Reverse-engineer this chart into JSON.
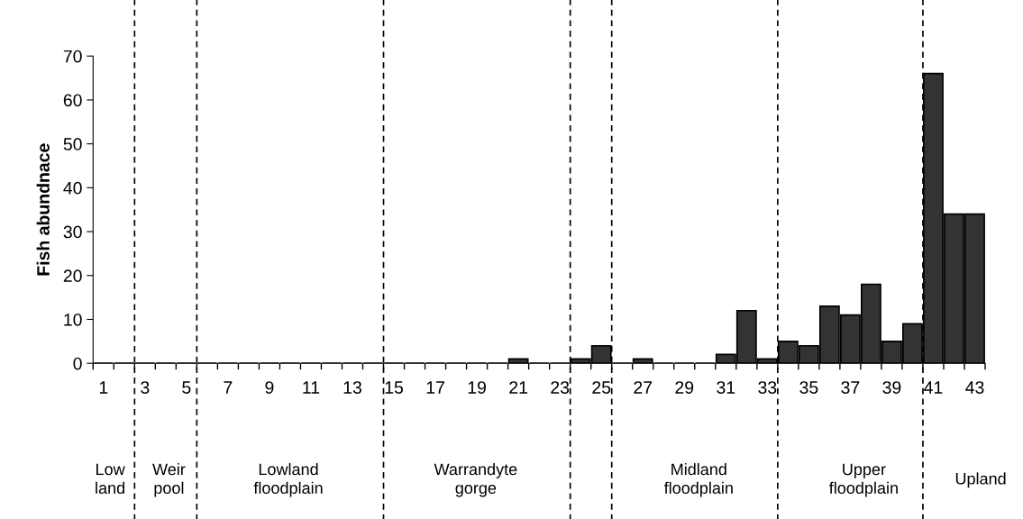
{
  "chart_data": {
    "type": "bar",
    "ylabel": "Fish abundnace",
    "x": [
      1,
      2,
      3,
      4,
      5,
      6,
      7,
      8,
      9,
      10,
      11,
      12,
      13,
      14,
      15,
      16,
      17,
      18,
      19,
      20,
      21,
      22,
      23,
      24,
      25,
      26,
      27,
      28,
      29,
      30,
      31,
      32,
      33,
      34,
      35,
      36,
      37,
      38,
      39,
      40,
      41,
      42,
      43
    ],
    "values": [
      0,
      0,
      0,
      0,
      0,
      0,
      0,
      0,
      0,
      0,
      0,
      0,
      0,
      0,
      0,
      0,
      0,
      0,
      0,
      0,
      1,
      0,
      0,
      1,
      4,
      0,
      1,
      0,
      0,
      0,
      2,
      12,
      1,
      5,
      4,
      13,
      11,
      18,
      5,
      9,
      66,
      34,
      34
    ],
    "color": "#333333",
    "xlim": [
      0.5,
      43.5
    ],
    "xticks": [
      1,
      3,
      5,
      7,
      9,
      11,
      13,
      15,
      17,
      19,
      21,
      23,
      25,
      27,
      29,
      31,
      33,
      35,
      37,
      39,
      41,
      43,
      {
        "value": 0.5,
        "label": null
      },
      {
        "value": 1.5,
        "label": null
      },
      {
        "value": 2.5,
        "label": null
      },
      {
        "value": 3.5,
        "label": null
      },
      {
        "value": 4.5,
        "label": null
      },
      {
        "value": 5.5,
        "label": null
      },
      {
        "value": 6.5,
        "label": null
      },
      {
        "value": 7.5,
        "label": null
      },
      {
        "value": 8.5,
        "label": null
      },
      {
        "value": 9.5,
        "label": null
      },
      {
        "value": 10.5,
        "label": null
      },
      {
        "value": 11.5,
        "label": null
      },
      {
        "value": 12.5,
        "label": null
      },
      {
        "value": 13.5,
        "label": null
      },
      {
        "value": 14.5,
        "label": null
      },
      {
        "value": 15.5,
        "label": null
      },
      {
        "value": 16.5,
        "label": null
      },
      {
        "value": 17.5,
        "label": null
      },
      {
        "value": 18.5,
        "label": null
      },
      {
        "value": 19.5,
        "label": null
      },
      {
        "value": 20.5,
        "label": null
      },
      {
        "value": 21.5,
        "label": null
      },
      {
        "value": 22.5,
        "label": null
      },
      {
        "value": 23.5,
        "label": null
      },
      {
        "value": 24.5,
        "label": null
      },
      {
        "value": 25.5,
        "label": null
      },
      {
        "value": 26.5,
        "label": null
      },
      {
        "value": 27.5,
        "label": null
      },
      {
        "value": 28.5,
        "label": null
      },
      {
        "value": 29.5,
        "label": null
      },
      {
        "value": 30.5,
        "label": null
      },
      {
        "value": 31.5,
        "label": null
      },
      {
        "value": 32.5,
        "label": null
      },
      {
        "value": 33.5,
        "label": null
      },
      {
        "value": 34.5,
        "label": null
      },
      {
        "value": 35.5,
        "label": null
      },
      {
        "value": 36.5,
        "label": null
      },
      {
        "value": 37.5,
        "label": null
      },
      {
        "value": 38.5,
        "label": null
      },
      {
        "value": 39.5,
        "label": null
      },
      {
        "value": 40.5,
        "label": null
      },
      {
        "value": 41.5,
        "label": null
      },
      {
        "value": 42.5,
        "label": null
      },
      {
        "value": 43.5,
        "label": null
      }
    ],
    "ylim": [
      0,
      70
    ],
    "yticks": [
      0,
      10,
      20,
      30,
      40,
      50,
      60,
      70
    ],
    "grid": false,
    "legend": false,
    "ref_lines": [
      {
        "axis": "x",
        "value": 2.5,
        "line_style": "dashed",
        "color": "#000000"
      },
      {
        "axis": "x",
        "value": 5.5,
        "line_style": "dashed",
        "color": "#000000"
      },
      {
        "axis": "x",
        "value": 14.5,
        "line_style": "dashed",
        "color": "#000000"
      },
      {
        "axis": "x",
        "value": 23.5,
        "line_style": "dashed",
        "color": "#000000"
      },
      {
        "axis": "x",
        "value": 25.5,
        "line_style": "dashed",
        "color": "#000000"
      },
      {
        "axis": "x",
        "value": 33.5,
        "line_style": "dashed",
        "color": "#000000"
      },
      {
        "axis": "x",
        "value": 40.5,
        "line_style": "dashed",
        "color": "#000000"
      }
    ],
    "annotations": [
      "Low\nland",
      "Weir\npool",
      "Lowland\nfloodplain",
      "Warrandyte\ngorge",
      "Midland\nfloodplain",
      "Upper\nfloodplain",
      "Upland"
    ]
  }
}
